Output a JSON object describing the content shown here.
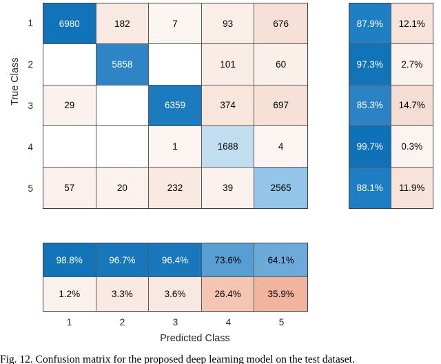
{
  "chart_data": {
    "type": "heatmap",
    "subtype": "confusion-matrix",
    "title": "",
    "xlabel": "Predicted Class",
    "ylabel": "True Class",
    "classes": [
      "1",
      "2",
      "3",
      "4",
      "5"
    ],
    "row_ticks": [
      "1",
      "2",
      "3",
      "4",
      "5"
    ],
    "col_ticks": [
      "1",
      "2",
      "3",
      "4",
      "5"
    ],
    "matrix": [
      [
        6980,
        182,
        7,
        93,
        676
      ],
      [
        null,
        5858,
        null,
        101,
        60
      ],
      [
        29,
        null,
        6359,
        374,
        697
      ],
      [
        null,
        null,
        1,
        1688,
        4
      ],
      [
        57,
        20,
        232,
        39,
        2565
      ]
    ],
    "matrix_colors": [
      [
        "#1173b9",
        "#f9ebe4",
        "#fcf5f1",
        "#faeee9",
        "#f6e0d7"
      ],
      [
        "#ffffff",
        "#2e85c5",
        "#ffffff",
        "#f9ece6",
        "#faf0ea"
      ],
      [
        "#fbf2ed",
        "#ffffff",
        "#1b7bbf",
        "#f8e6dd",
        "#f6e0d7"
      ],
      [
        "#ffffff",
        "#ffffff",
        "#fcf5f1",
        "#c1def0",
        "#fcf5f1"
      ],
      [
        "#fbf0eb",
        "#fbf2ee",
        "#f9e9e2",
        "#fbf1ec",
        "#92c5e8"
      ]
    ],
    "row_summary": [
      [
        "87.9%",
        "12.1%"
      ],
      [
        "97.3%",
        "2.7%"
      ],
      [
        "85.3%",
        "14.7%"
      ],
      [
        "99.7%",
        "0.3%"
      ],
      [
        "88.1%",
        "11.9%"
      ]
    ],
    "row_summary_colors": [
      [
        "#1f7fc4",
        "#f7e3da"
      ],
      [
        "#1174b9",
        "#fbf1ec"
      ],
      [
        "#2b82c4",
        "#f5ddd3"
      ],
      [
        "#0f72b8",
        "#fcf4f0"
      ],
      [
        "#1e7ec3",
        "#f7e3da"
      ]
    ],
    "col_summary": [
      [
        "98.8%",
        "96.7%",
        "96.4%",
        "73.6%",
        "64.1%"
      ],
      [
        "1.2%",
        "3.3%",
        "3.6%",
        "26.4%",
        "35.9%"
      ]
    ],
    "col_summary_colors": [
      [
        "#1173b8",
        "#1876bb",
        "#1977bc",
        "#579ed3",
        "#6caad9"
      ],
      [
        "#fbf1ec",
        "#fae9e2",
        "#f9e8e1",
        "#f4c5b2",
        "#f1b49e"
      ]
    ],
    "grid_on": true,
    "legend": "none",
    "colors": {
      "diagonal_blue_dark": "#1173b9",
      "diagonal_blue_light": "#c1def0",
      "offdiagonal_pink_dark": "#f1b49e",
      "grid_line": "#595959",
      "outer_border": "#3f3f3f",
      "tick_text": "#262626",
      "background": "#ffffff"
    }
  },
  "caption": "Fig. 12. Confusion matrix for the proposed deep learning model on the test dataset."
}
